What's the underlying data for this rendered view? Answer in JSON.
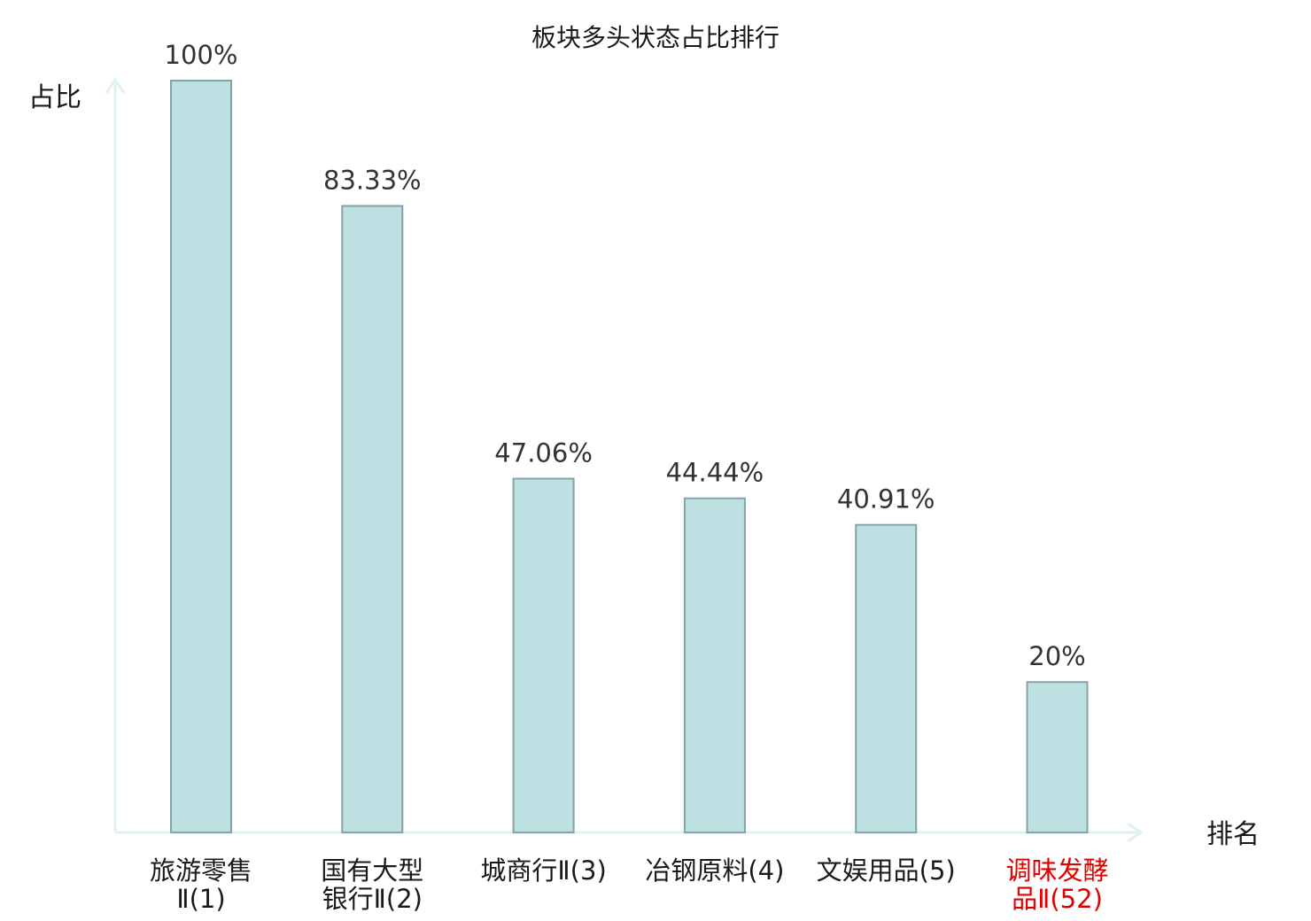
{
  "chart_data": {
    "type": "bar",
    "title": "板块多头状态占比排行",
    "ylabel": "占比",
    "xlabel": "排名",
    "ylim": [
      0,
      100
    ],
    "grid": false,
    "legend": "none",
    "categories": [
      [
        "旅游零售",
        "Ⅱ(1)"
      ],
      [
        "国有大型",
        "银行Ⅱ(2)"
      ],
      [
        "城商行Ⅱ(3)"
      ],
      [
        "冶钢原料(4)"
      ],
      [
        "文娱用品(5)"
      ],
      [
        "调味发酵",
        "品Ⅱ(52)"
      ]
    ],
    "values": [
      100,
      83.33,
      47.06,
      44.44,
      40.91,
      20
    ],
    "value_labels": [
      "100%",
      "83.33%",
      "47.06%",
      "44.44%",
      "40.91%",
      "20%"
    ],
    "highlight_index": 5
  },
  "colors": {
    "bar_fill": "#bde0e3",
    "bar_stroke": "#86a2a6",
    "axis": "#e0f1ef",
    "text": "#1a1a1a",
    "highlight": "#e00000"
  }
}
